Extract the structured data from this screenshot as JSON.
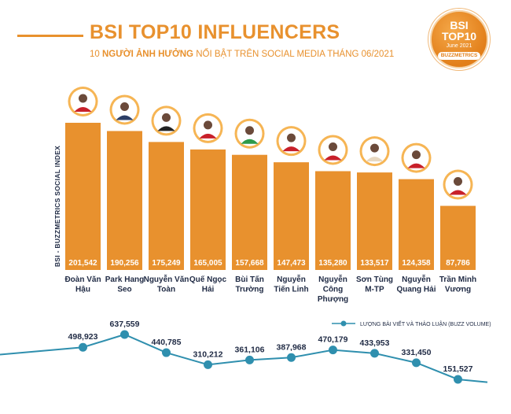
{
  "header": {
    "title": "BSI TOP10 INFLUENCERS",
    "subtitle_prefix": "10 ",
    "subtitle_bold": "NGƯỜI ẢNH HƯỞNG",
    "subtitle_rest": " NỔI BẬT TRÊN SOCIAL MEDIA THÁNG 06/2021"
  },
  "badge": {
    "line1": "BSI",
    "line2": "TOP10",
    "line3": "June 2021",
    "brand": "BUZZMETRICS"
  },
  "colors": {
    "bar": "#e8912e",
    "title": "#e8912e",
    "line": "#2f8fae",
    "label": "#1f2a44"
  },
  "chart_data": [
    {
      "type": "bar",
      "ylabel": "BSI - BUZZMETRICS SOCIAL INDEX",
      "categories": [
        [
          "Đoàn Văn",
          "Hậu"
        ],
        [
          "Park Hang",
          "Seo"
        ],
        [
          "Nguyễn Văn",
          "Toàn"
        ],
        [
          "Quế Ngọc",
          "Hải"
        ],
        [
          "Bùi Tấn",
          "Trường"
        ],
        [
          "Nguyễn",
          "Tiến Linh"
        ],
        [
          "Nguyễn",
          "Công",
          "Phượng"
        ],
        [
          "Sơn Tùng",
          "M-TP"
        ],
        [
          "Nguyễn",
          "Quang Hải"
        ],
        [
          "Trần Minh",
          "Vương"
        ]
      ],
      "values": [
        201542,
        190256,
        175249,
        165005,
        157668,
        147473,
        135280,
        133517,
        124358,
        87786
      ],
      "value_labels": [
        "201,542",
        "190,256",
        "175,249",
        "165,005",
        "157,668",
        "147,473",
        "135,280",
        "133,517",
        "124,358",
        "87,786"
      ],
      "ylim": [
        0,
        201542
      ]
    },
    {
      "type": "line",
      "series": [
        {
          "name": "LƯỢNG BÀI VIẾT VÀ THẢO LUẬN (BUZZ VOLUME)",
          "values": [
            498923,
            637559,
            440785,
            310212,
            361106,
            387968,
            470179,
            433953,
            331450,
            151527
          ],
          "value_labels": [
            "498,923",
            "637,559",
            "440,785",
            "310,212",
            "361,106",
            "387,968",
            "470,179",
            "433,953",
            "331,450",
            "151,527"
          ]
        }
      ]
    }
  ]
}
